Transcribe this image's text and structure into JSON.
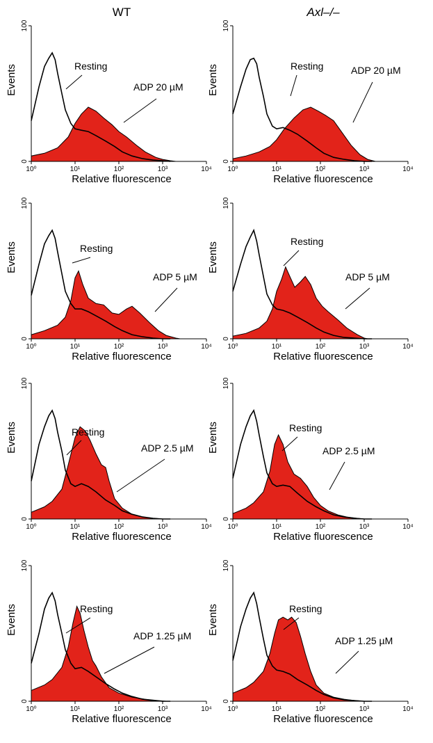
{
  "columns": [
    "WT",
    "Axl–/–"
  ],
  "colors": {
    "activated_fill": "#e2231a",
    "trace": "#000000"
  },
  "chart_data": [
    {
      "type": "area",
      "panel": "WT, ADP 20 µM",
      "xlabel": "Relative fluorescence",
      "ylabel": "Events",
      "xscale": "log",
      "xlim": [
        1,
        10000
      ],
      "ylim": [
        0,
        100
      ],
      "xticks": [
        1,
        10,
        100,
        1000,
        10000
      ],
      "yticks": [
        0,
        100
      ],
      "series": [
        {
          "name": "Resting",
          "x": [
            1.0,
            1.5,
            2.0,
            2.5,
            3.0,
            3.5,
            4.0,
            5.0,
            6.0,
            8.0,
            10.0,
            14.0,
            20.0,
            30.0,
            50.0,
            80.0,
            120.0,
            200.0,
            350.0,
            600.0,
            1000.0,
            1500.0
          ],
          "y": [
            30.0,
            55.0,
            70.0,
            76.0,
            80.0,
            75.0,
            65.0,
            50.0,
            38.0,
            28.0,
            24.0,
            23.0,
            22.0,
            19.0,
            15.0,
            11.0,
            7.0,
            4.0,
            2.0,
            1.0,
            0.5,
            0.0
          ]
        },
        {
          "name": "ADP 20 µM",
          "x": [
            1.0,
            2.0,
            4.0,
            7.0,
            10.0,
            14.0,
            20.0,
            30.0,
            45.0,
            70.0,
            100.0,
            150.0,
            250.0,
            400.0,
            700.0,
            1000.0,
            1500.0,
            2000.0
          ],
          "y": [
            4.0,
            6.0,
            10.0,
            18.0,
            28.0,
            35.0,
            40.0,
            37.0,
            32.0,
            27.0,
            22.0,
            18.0,
            12.0,
            7.0,
            3.0,
            1.5,
            0.5,
            0.0
          ]
        }
      ],
      "annotations": [
        "Resting",
        "ADP 20 µM"
      ]
    },
    {
      "type": "area",
      "panel": "Axl-/-, ADP 20 µM",
      "xlabel": "Relative fluorescence",
      "ylabel": "Events",
      "xscale": "log",
      "xlim": [
        1,
        10000
      ],
      "ylim": [
        0,
        100
      ],
      "xticks": [
        1,
        10,
        100,
        1000,
        10000
      ],
      "yticks": [
        0,
        100
      ],
      "series": [
        {
          "name": "Resting",
          "x": [
            1.0,
            1.5,
            2.0,
            2.5,
            3.0,
            3.5,
            4.0,
            5.0,
            6.0,
            8.0,
            10.0,
            14.0,
            20.0,
            30.0,
            50.0,
            80.0,
            120.0,
            200.0,
            350.0,
            600.0,
            1000.0,
            1500.0
          ],
          "y": [
            35.0,
            55.0,
            68.0,
            75.0,
            76.0,
            72.0,
            62.0,
            48.0,
            35.0,
            26.0,
            24.0,
            25.0,
            23.0,
            20.0,
            15.0,
            10.0,
            6.0,
            3.0,
            1.5,
            0.5,
            0.0,
            0.0
          ]
        },
        {
          "name": "ADP 20 µM",
          "x": [
            1.0,
            2.0,
            4.0,
            7.0,
            10.0,
            15.0,
            25.0,
            40.0,
            60.0,
            90.0,
            130.0,
            200.0,
            300.0,
            500.0,
            800.0,
            1200.0,
            1800.0
          ],
          "y": [
            2.0,
            4.0,
            7.0,
            11.0,
            16.0,
            24.0,
            32.0,
            38.0,
            40.0,
            37.0,
            34.0,
            30.0,
            22.0,
            12.0,
            5.0,
            1.5,
            0.0
          ]
        }
      ],
      "annotations": [
        "Resting",
        "ADP 20 µM"
      ]
    },
    {
      "type": "area",
      "panel": "WT, ADP 5 µM",
      "xlabel": "Relative fluorescence",
      "ylabel": "Events",
      "xscale": "log",
      "xlim": [
        1,
        10000
      ],
      "ylim": [
        0,
        100
      ],
      "xticks": [
        1,
        10,
        100,
        1000,
        10000
      ],
      "yticks": [
        0,
        100
      ],
      "series": [
        {
          "name": "Resting",
          "x": [
            1.0,
            1.5,
            2.0,
            2.5,
            3.0,
            3.5,
            4.0,
            5.0,
            6.0,
            8.0,
            10.0,
            14.0,
            20.0,
            30.0,
            50.0,
            80.0,
            120.0,
            200.0,
            350.0,
            600.0,
            1000.0,
            1500.0
          ],
          "y": [
            32.0,
            55.0,
            70.0,
            76.0,
            80.0,
            74.0,
            64.0,
            48.0,
            35.0,
            26.0,
            22.0,
            22.0,
            20.0,
            17.0,
            13.0,
            9.0,
            6.0,
            3.0,
            1.5,
            0.5,
            0.0,
            0.0
          ]
        },
        {
          "name": "ADP 5 µM",
          "x": [
            1.0,
            2.0,
            4.0,
            6.0,
            8.0,
            10.0,
            12.0,
            15.0,
            20.0,
            30.0,
            45.0,
            70.0,
            100.0,
            150.0,
            200.0,
            300.0,
            500.0,
            800.0,
            1200.0,
            2000.0,
            2500.0
          ],
          "y": [
            3.0,
            6.0,
            10.0,
            16.0,
            28.0,
            45.0,
            50.0,
            40.0,
            30.0,
            26.0,
            25.0,
            19.0,
            18.0,
            22.0,
            24.0,
            19.0,
            12.0,
            6.0,
            2.5,
            0.5,
            0.0
          ]
        }
      ],
      "annotations": [
        "Resting",
        "ADP 5 µM"
      ]
    },
    {
      "type": "area",
      "panel": "Axl-/-, ADP 5 µM",
      "xlabel": "Relative fluorescence",
      "ylabel": "Events",
      "xscale": "log",
      "xlim": [
        1,
        10000
      ],
      "ylim": [
        0,
        100
      ],
      "xticks": [
        1,
        10,
        100,
        1000,
        10000
      ],
      "yticks": [
        0,
        100
      ],
      "series": [
        {
          "name": "Resting",
          "x": [
            1.0,
            1.5,
            2.0,
            2.5,
            3.0,
            3.5,
            4.0,
            5.0,
            6.0,
            8.0,
            10.0,
            14.0,
            20.0,
            30.0,
            50.0,
            80.0,
            120.0,
            200.0,
            350.0,
            600.0,
            1000.0,
            1500.0
          ],
          "y": [
            35.0,
            55.0,
            68.0,
            75.0,
            80.0,
            72.0,
            62.0,
            46.0,
            33.0,
            25.0,
            22.0,
            21.0,
            19.0,
            16.0,
            12.0,
            8.0,
            5.0,
            2.5,
            1.0,
            0.5,
            0.0,
            0.0
          ]
        },
        {
          "name": "ADP 5 µM",
          "x": [
            1.0,
            2.0,
            4.0,
            6.0,
            8.0,
            10.0,
            13.0,
            16.0,
            20.0,
            26.0,
            35.0,
            45.0,
            60.0,
            80.0,
            110.0,
            150.0,
            250.0,
            400.0,
            700.0,
            1000.0,
            1200.0
          ],
          "y": [
            2.0,
            4.0,
            8.0,
            13.0,
            22.0,
            35.0,
            44.0,
            53.0,
            46.0,
            38.0,
            42.0,
            46.0,
            40.0,
            30.0,
            24.0,
            20.0,
            14.0,
            8.0,
            3.0,
            0.5,
            0.0
          ]
        }
      ],
      "annotations": [
        "Resting",
        "ADP 5 µM"
      ]
    },
    {
      "type": "area",
      "panel": "WT, ADP 2.5 µM",
      "xlabel": "Relative fluorescence",
      "ylabel": "Events",
      "xscale": "log",
      "xlim": [
        1,
        10000
      ],
      "ylim": [
        0,
        100
      ],
      "xticks": [
        1,
        10,
        100,
        1000,
        10000
      ],
      "yticks": [
        0,
        100
      ],
      "series": [
        {
          "name": "Resting",
          "x": [
            1.0,
            1.5,
            2.0,
            2.5,
            3.0,
            3.5,
            4.0,
            5.0,
            6.0,
            8.0,
            10.0,
            14.0,
            20.0,
            30.0,
            50.0,
            80.0,
            120.0,
            200.0,
            350.0,
            600.0,
            1000.0,
            1500.0
          ],
          "y": [
            28.0,
            55.0,
            68.0,
            76.0,
            80.0,
            74.0,
            64.0,
            50.0,
            36.0,
            26.0,
            24.0,
            26.0,
            24.0,
            20.0,
            14.0,
            10.0,
            6.0,
            3.5,
            1.5,
            0.5,
            0.0,
            0.0
          ]
        },
        {
          "name": "ADP 2.5 µM",
          "x": [
            1.0,
            2.0,
            3.0,
            5.0,
            7.0,
            10.0,
            13.0,
            17.0,
            22.0,
            30.0,
            40.0,
            50.0,
            60.0,
            80.0,
            120.0,
            200.0,
            350.0,
            600.0,
            1000.0
          ],
          "y": [
            5.0,
            9.0,
            13.0,
            22.0,
            40.0,
            60.0,
            68.0,
            65.0,
            58.0,
            48.0,
            40.0,
            38.0,
            28.0,
            15.0,
            8.0,
            3.5,
            1.5,
            0.5,
            0.0
          ]
        }
      ],
      "annotations": [
        "Resting",
        "ADP 2.5 µM"
      ]
    },
    {
      "type": "area",
      "panel": "Axl-/-, ADP 2.5 µM",
      "xlabel": "Relative fluorescence",
      "ylabel": "Events",
      "xscale": "log",
      "xlim": [
        1,
        10000
      ],
      "ylim": [
        0,
        100
      ],
      "xticks": [
        1,
        10,
        100,
        1000,
        10000
      ],
      "yticks": [
        0,
        100
      ],
      "series": [
        {
          "name": "Resting",
          "x": [
            1.0,
            1.5,
            2.0,
            2.5,
            3.0,
            3.5,
            4.0,
            5.0,
            6.0,
            8.0,
            10.0,
            14.0,
            20.0,
            30.0,
            50.0,
            80.0,
            120.0,
            200.0,
            350.0,
            600.0,
            1000.0,
            1500.0
          ],
          "y": [
            30.0,
            55.0,
            68.0,
            76.0,
            80.0,
            72.0,
            62.0,
            46.0,
            34.0,
            26.0,
            24.0,
            25.0,
            24.0,
            19.0,
            13.0,
            9.0,
            6.0,
            3.0,
            1.5,
            0.5,
            0.0,
            0.0
          ]
        },
        {
          "name": "ADP 2.5 µM",
          "x": [
            1.0,
            2.0,
            3.0,
            5.0,
            7.0,
            9.0,
            11.0,
            14.0,
            18.0,
            25.0,
            35.0,
            50.0,
            70.0,
            100.0,
            150.0,
            250.0,
            400.0,
            700.0,
            1000.0
          ],
          "y": [
            4.0,
            8.0,
            12.0,
            20.0,
            35.0,
            55.0,
            62.0,
            55.0,
            42.0,
            33.0,
            30.0,
            24.0,
            16.0,
            10.0,
            6.0,
            3.0,
            1.5,
            0.5,
            0.0
          ]
        }
      ],
      "annotations": [
        "Resting",
        "ADP 2.5 µM"
      ]
    },
    {
      "type": "area",
      "panel": "WT, ADP 1.25 µM",
      "xlabel": "Relative fluorescence",
      "ylabel": "Events",
      "xscale": "log",
      "xlim": [
        1,
        10000
      ],
      "ylim": [
        0,
        100
      ],
      "xticks": [
        1,
        10,
        100,
        1000,
        10000
      ],
      "yticks": [
        0,
        100
      ],
      "series": [
        {
          "name": "Resting",
          "x": [
            1.0,
            1.5,
            2.0,
            2.5,
            3.0,
            3.5,
            4.0,
            5.0,
            6.0,
            8.0,
            10.0,
            14.0,
            20.0,
            30.0,
            50.0,
            80.0,
            120.0,
            200.0,
            350.0,
            600.0,
            1000.0,
            1500.0
          ],
          "y": [
            28.0,
            50.0,
            68.0,
            76.0,
            80.0,
            74.0,
            64.0,
            50.0,
            38.0,
            28.0,
            24.0,
            25.0,
            22.0,
            18.0,
            13.0,
            9.0,
            6.0,
            3.5,
            1.5,
            0.5,
            0.0,
            0.0
          ]
        },
        {
          "name": "ADP 1.25 µM",
          "x": [
            1.0,
            2.0,
            3.0,
            5.0,
            7.0,
            9.0,
            11.0,
            13.0,
            16.0,
            20.0,
            25.0,
            30.0,
            40.0,
            60.0,
            100.0,
            200.0,
            400.0,
            800.0,
            1200.0
          ],
          "y": [
            8.0,
            12.0,
            16.0,
            25.0,
            40.0,
            58.0,
            70.0,
            65.0,
            52.0,
            40.0,
            30.0,
            26.0,
            18.0,
            10.0,
            6.0,
            3.0,
            1.5,
            0.5,
            0.0
          ]
        }
      ],
      "annotations": [
        "Resting",
        "ADP 1.25 µM"
      ]
    },
    {
      "type": "area",
      "panel": "Axl-/-, ADP 1.25 µM",
      "xlabel": "Relative fluorescence",
      "ylabel": "Events",
      "xscale": "log",
      "xlim": [
        1,
        10000
      ],
      "ylim": [
        0,
        100
      ],
      "xticks": [
        1,
        10,
        100,
        1000,
        10000
      ],
      "yticks": [
        0,
        100
      ],
      "series": [
        {
          "name": "Resting",
          "x": [
            1.0,
            1.5,
            2.0,
            2.5,
            3.0,
            3.5,
            4.0,
            5.0,
            6.0,
            8.0,
            10.0,
            14.0,
            20.0,
            30.0,
            50.0,
            80.0,
            120.0,
            200.0,
            350.0,
            600.0,
            1000.0,
            1500.0
          ],
          "y": [
            30.0,
            55.0,
            68.0,
            76.0,
            80.0,
            72.0,
            62.0,
            46.0,
            34.0,
            26.0,
            23.0,
            22.0,
            20.0,
            16.0,
            12.0,
            8.0,
            5.0,
            2.5,
            1.0,
            0.5,
            0.0,
            0.0
          ]
        },
        {
          "name": "ADP 1.25 µM",
          "x": [
            1.0,
            2.0,
            3.0,
            5.0,
            7.0,
            9.0,
            11.0,
            14.0,
            18.0,
            22.0,
            28.0,
            35.0,
            45.0,
            60.0,
            80.0,
            120.0,
            200.0,
            350.0,
            600.0,
            1000.0
          ],
          "y": [
            6.0,
            10.0,
            14.0,
            22.0,
            35.0,
            50.0,
            60.0,
            62.0,
            60.0,
            62.0,
            58.0,
            48.0,
            35.0,
            22.0,
            12.0,
            6.0,
            3.0,
            1.5,
            0.5,
            0.0
          ]
        }
      ],
      "annotations": [
        "Resting",
        "ADP 1.25 µM"
      ]
    }
  ]
}
